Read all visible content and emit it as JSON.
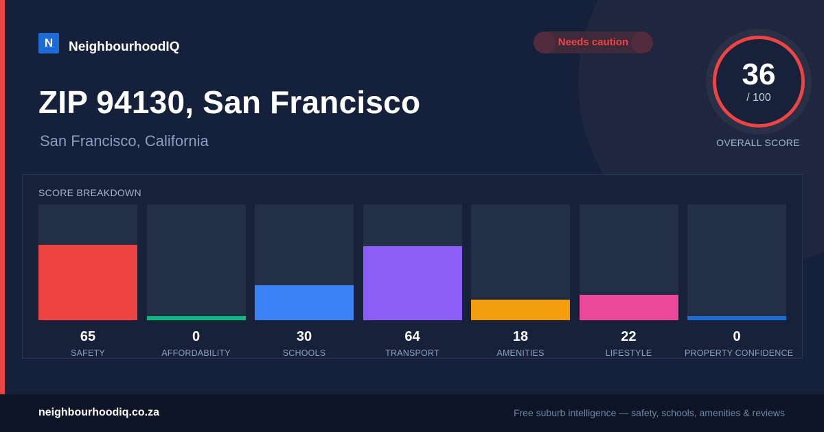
{
  "brand": {
    "logo_letter": "N",
    "name": "NeighbourhoodIQ",
    "logo_color": "#1d6bd6"
  },
  "badge": {
    "text": "Needs caution",
    "color": "#ef4444"
  },
  "title": "ZIP 94130, San Francisco",
  "subtitle": "San Francisco, California",
  "overall": {
    "score": "36",
    "out_of": "/ 100",
    "label": "OVERALL SCORE",
    "ring_color": "#ef4444"
  },
  "breakdown": {
    "title": "SCORE BREAKDOWN"
  },
  "chart_data": {
    "type": "bar",
    "title": "SCORE BREAKDOWN",
    "categories": [
      "SAFETY",
      "AFFORDABILITY",
      "SCHOOLS",
      "TRANSPORT",
      "AMENITIES",
      "LIFESTYLE",
      "PROPERTY CONFIDENCE"
    ],
    "values": [
      65,
      0,
      30,
      64,
      18,
      22,
      0
    ],
    "colors": [
      "#ef4444",
      "#10b981",
      "#3b82f6",
      "#8b5cf6",
      "#f59e0b",
      "#ec4899",
      "#1d6bd6"
    ],
    "ylim": [
      0,
      100
    ],
    "grid": false
  },
  "footer": {
    "site": "neighbourhoodiq.co.za",
    "tagline": "Free suburb intelligence — safety, schools, amenities & reviews"
  }
}
